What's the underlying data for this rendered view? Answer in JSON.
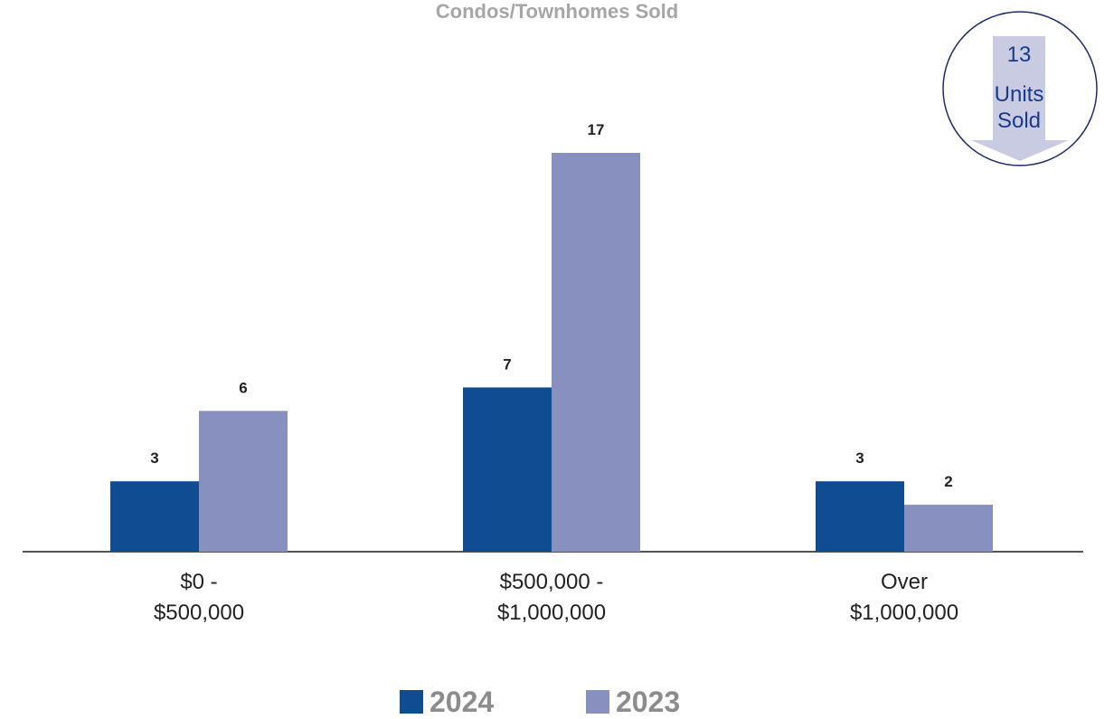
{
  "chart_data": {
    "type": "bar",
    "title": "Condos/Townhomes Sold",
    "categories": [
      "$0 -\n$500,000",
      "$500,000 -\n$1,000,000",
      "Over\n$1,000,000"
    ],
    "series": [
      {
        "name": "2024",
        "color": "#0f4c92",
        "values": [
          3,
          7,
          3
        ]
      },
      {
        "name": "2023",
        "color": "#8790be",
        "values": [
          6,
          17,
          2
        ]
      }
    ],
    "ylim": [
      0,
      17
    ],
    "badge": {
      "count": 13,
      "text": "Units\nSold"
    }
  }
}
